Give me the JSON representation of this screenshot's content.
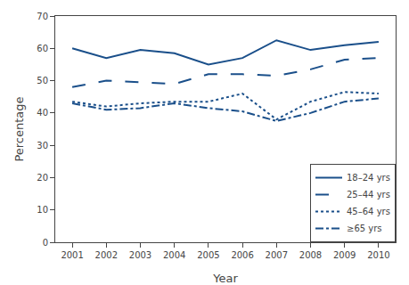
{
  "chart_data": {
    "type": "line",
    "x": [
      2001,
      2002,
      2003,
      2004,
      2005,
      2006,
      2007,
      2008,
      2009,
      2010
    ],
    "series": [
      {
        "name": "18–24 yrs",
        "color": "#1a4f8a",
        "line_style": "solid",
        "values": [
          60.0,
          57.0,
          59.5,
          58.5,
          55.0,
          57.0,
          62.5,
          59.5,
          61.0,
          62.0
        ]
      },
      {
        "name": "25–44 yrs",
        "color": "#1a4f8a",
        "line_style": "dashed",
        "values": [
          48.0,
          50.0,
          49.5,
          49.0,
          52.0,
          52.0,
          51.5,
          53.5,
          56.5,
          57.0
        ]
      },
      {
        "name": "45–64 yrs",
        "color": "#1a4f8a",
        "line_style": "dotted",
        "values": [
          43.5,
          42.0,
          43.0,
          43.5,
          43.5,
          46.0,
          38.0,
          43.5,
          46.5,
          46.0
        ]
      },
      {
        "name": "≥65 yrs",
        "color": "#1a4f8a",
        "line_style": "dashdot",
        "values": [
          43.0,
          41.0,
          41.5,
          43.0,
          41.5,
          40.5,
          37.5,
          40.0,
          43.5,
          44.5
        ]
      }
    ],
    "xlabel": "Year",
    "ylabel": "Percentage",
    "xlim": [
      2000.5,
      2010.5
    ],
    "xticks": [
      2001,
      2002,
      2003,
      2004,
      2005,
      2006,
      2007,
      2008,
      2009,
      2010
    ],
    "ylim": [
      0,
      70
    ],
    "yticks": [
      0,
      10,
      20,
      30,
      40,
      50,
      60,
      70
    ],
    "grid": false,
    "legend": "lower right"
  }
}
